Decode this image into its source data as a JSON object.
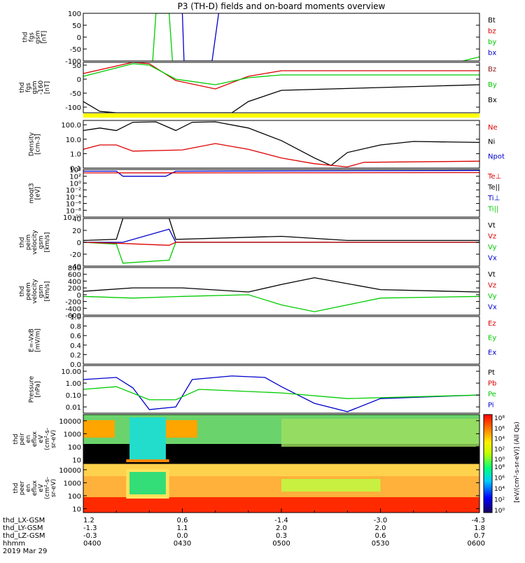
{
  "title": "P3 (TH-D) fields and on-board moments overview",
  "colors": {
    "black": "#000000",
    "red": "#dd0000",
    "green": "#00cc00",
    "blue": "#0000cc",
    "yellow": "#ffff00",
    "brown": "#8b1a1a"
  },
  "xaxis": {
    "start": "0400",
    "end": "0600",
    "major_ticks": [
      "0400",
      "0430",
      "0500",
      "0530",
      "0600"
    ],
    "rows": [
      {
        "label": "thd_LX-GSM",
        "values": [
          "1.2",
          "0.6",
          "-1.4",
          "-3.0",
          "-4.3"
        ]
      },
      {
        "label": "thd_LY-GSM",
        "values": [
          "-1.3",
          "1.1",
          "2.0",
          "2.0",
          "1.8"
        ]
      },
      {
        "label": "thd_LZ-GSM",
        "values": [
          "-0.3",
          "0.0",
          "0.3",
          "0.6",
          "0.7"
        ]
      },
      {
        "label": "hhmm",
        "values": [
          "0400",
          "0430",
          "0500",
          "0530",
          "0600"
        ]
      }
    ],
    "date": "2019 Mar 29"
  },
  "chart_data": [
    {
      "id": "fgs",
      "type": "line",
      "ylabel_lines": [
        "thd",
        "fgs",
        "gsm",
        "[nT]"
      ],
      "yticks": [
        "100",
        "50",
        "0",
        "-50",
        "-100"
      ],
      "ylim": [
        -100,
        100
      ],
      "legend": [
        "Bt",
        "bz",
        "by",
        "bx"
      ],
      "legend_colors": [
        "black",
        "red",
        "green",
        "blue"
      ],
      "series": [
        {
          "name": "by",
          "color": "green",
          "x": [
            "0421",
            "0422",
            "0426",
            "0427"
          ],
          "y": [
            -100,
            100,
            100,
            -100
          ]
        },
        {
          "name": "bx",
          "color": "blue",
          "x": [
            "0430",
            "0430.5",
            "0439",
            "0441"
          ],
          "y": [
            100,
            -100,
            -100,
            100
          ]
        },
        {
          "name": "by",
          "color": "green",
          "x": [
            "0555",
            "0600"
          ],
          "y": [
            -100,
            -83
          ]
        }
      ]
    },
    {
      "id": "fgs160",
      "type": "line",
      "ylabel_lines": [
        "thd",
        "fgs",
        "gsm",
        "-160",
        "[nT]"
      ],
      "yticks": [
        "50",
        "0",
        "-50",
        "-100"
      ],
      "ylim": [
        -120,
        60
      ],
      "legend": [
        "Bz",
        "By",
        "Bx"
      ],
      "legend_colors": [
        "brown",
        "green",
        "black"
      ],
      "series": [
        {
          "name": "Bz",
          "color": "red",
          "x": [
            "0400",
            "0415",
            "0420",
            "0428",
            "0440",
            "0450",
            "0500",
            "0530",
            "0600"
          ],
          "y": [
            20,
            60,
            55,
            -5,
            -35,
            10,
            30,
            30,
            30
          ]
        },
        {
          "name": "By",
          "color": "green",
          "x": [
            "0400",
            "0415",
            "0420",
            "0428",
            "0440",
            "0450",
            "0500",
            "0530",
            "0600"
          ],
          "y": [
            10,
            55,
            50,
            0,
            -20,
            5,
            15,
            15,
            15
          ]
        },
        {
          "name": "Bx",
          "color": "black",
          "x": [
            "0400",
            "0405",
            "0410",
            "0445",
            "0450",
            "0500",
            "0530",
            "0600"
          ],
          "y": [
            -80,
            -115,
            -120,
            -120,
            -80,
            -40,
            -30,
            -20
          ]
        }
      ]
    },
    {
      "id": "density",
      "type": "line",
      "scale": "log",
      "ylabel_lines": [
        "Density",
        "[cm-3]"
      ],
      "yticks": [
        "100.0",
        "10.0",
        "1.0",
        "0.1"
      ],
      "ylim": [
        0.1,
        200
      ],
      "legend": [
        "Ne",
        "Ni",
        "Npot"
      ],
      "legend_colors": [
        "red",
        "black",
        "blue"
      ],
      "series": [
        {
          "name": "Ni",
          "color": "black",
          "x": [
            "0400",
            "0405",
            "0410",
            "0415",
            "0422",
            "0428",
            "0433",
            "0440",
            "0450",
            "0500",
            "0510",
            "0515",
            "0520",
            "0530",
            "0540",
            "0600"
          ],
          "y": [
            40,
            60,
            40,
            150,
            160,
            40,
            150,
            160,
            60,
            8,
            0.5,
            0.15,
            1.2,
            4,
            7,
            6
          ]
        },
        {
          "name": "Ne",
          "color": "red",
          "x": [
            "0400",
            "0405",
            "0410",
            "0415",
            "0430",
            "0440",
            "0450",
            "0500",
            "0510",
            "0520",
            "0525",
            "0600"
          ],
          "y": [
            2,
            4,
            4,
            1.5,
            1.8,
            5,
            2,
            0.5,
            0.2,
            0.12,
            0.25,
            0.3
          ]
        }
      ]
    },
    {
      "id": "moqt3",
      "type": "line",
      "scale": "log",
      "ylabel_lines": [
        "moqt3",
        "[eV]"
      ],
      "yticks": [
        "10⁴",
        "10²",
        "10⁰",
        "10⁻²",
        "10⁻⁴",
        "10⁻⁶",
        "10⁻⁸",
        "10⁻¹⁰"
      ],
      "ylim": [
        1e-10,
        10000.0
      ],
      "legend": [
        "Te⊥",
        "Te||",
        "Ti⊥",
        "Ti||"
      ],
      "legend_colors": [
        "red",
        "black",
        "blue",
        "green"
      ],
      "series": [
        {
          "name": "Ti",
          "color": "blue",
          "x": [
            "0400",
            "0410",
            "0412",
            "0425",
            "0428",
            "0600"
          ],
          "y": [
            3000,
            3000,
            100,
            100,
            3000,
            5000
          ]
        },
        {
          "name": "Te",
          "color": "red",
          "x": [
            "0400",
            "0600"
          ],
          "y": [
            1000,
            1200
          ]
        }
      ]
    },
    {
      "id": "peim",
      "type": "line",
      "ylabel_lines": [
        "thd",
        "peim",
        "velocity",
        "gsm",
        "[km/s]"
      ],
      "yticks": [
        "40",
        "20",
        "0",
        "-20",
        "-40"
      ],
      "ylim": [
        -40,
        40
      ],
      "legend": [
        "Vt",
        "Vz",
        "Vy",
        "Vx"
      ],
      "legend_colors": [
        "black",
        "red",
        "green",
        "blue"
      ],
      "series": [
        {
          "name": "Vt",
          "color": "black",
          "x": [
            "0400",
            "0410",
            "0412",
            "0426",
            "0428",
            "0500",
            "0520",
            "0600"
          ],
          "y": [
            3,
            5,
            40,
            40,
            5,
            10,
            3,
            3
          ]
        },
        {
          "name": "Vy",
          "color": "green",
          "x": [
            "0400",
            "0410",
            "0412",
            "0426",
            "0428",
            "0600"
          ],
          "y": [
            0,
            -3,
            -35,
            -30,
            0,
            0
          ]
        },
        {
          "name": "Vx",
          "color": "blue",
          "x": [
            "0400",
            "0412",
            "0426",
            "0428",
            "0600"
          ],
          "y": [
            0,
            0,
            22,
            0,
            0
          ]
        },
        {
          "name": "Vz",
          "color": "red",
          "x": [
            "0400",
            "0412",
            "0426",
            "0428",
            "0600"
          ],
          "y": [
            0,
            -2,
            -5,
            0,
            0
          ]
        }
      ]
    },
    {
      "id": "peem",
      "type": "line",
      "ylabel_lines": [
        "thd",
        "peem",
        "velocity",
        "gsm",
        "[km/s]"
      ],
      "yticks": [
        "800",
        "600",
        "400",
        "200",
        "0",
        "-200",
        "-400",
        "-600"
      ],
      "ylim": [
        -600,
        800
      ],
      "legend": [
        "Vt",
        "Vz",
        "Vy",
        "Vx"
      ],
      "legend_colors": [
        "black",
        "red",
        "green",
        "blue"
      ],
      "series": [
        {
          "name": "Vt",
          "color": "black",
          "x": [
            "0400",
            "0415",
            "0430",
            "0450",
            "0500",
            "0510",
            "0530",
            "0600"
          ],
          "y": [
            100,
            200,
            200,
            80,
            300,
            500,
            150,
            80
          ]
        },
        {
          "name": "Vy",
          "color": "green",
          "x": [
            "0400",
            "0415",
            "0430",
            "0450",
            "0500",
            "0510",
            "0530",
            "0600"
          ],
          "y": [
            -50,
            -100,
            -50,
            0,
            -300,
            -500,
            -100,
            -50
          ]
        }
      ]
    },
    {
      "id": "efield",
      "type": "line",
      "ylabel_lines": [
        "E=-VxB",
        "[mV/m]"
      ],
      "yticks": [
        "1.0",
        "0.8",
        "0.6",
        "0.4",
        "0.2",
        "0.0"
      ],
      "ylim": [
        0,
        1
      ],
      "legend": [
        "Ez",
        "Ey",
        "Ex"
      ],
      "legend_colors": [
        "red",
        "green",
        "blue"
      ],
      "series": []
    },
    {
      "id": "pressure",
      "type": "line",
      "scale": "log",
      "ylabel_lines": [
        "Pressure",
        "[nPa]"
      ],
      "yticks": [
        "10.00",
        "1.00",
        "0.10",
        "0.01"
      ],
      "ylim": [
        0.003,
        30
      ],
      "legend": [
        "Pt",
        "Pb",
        "Pe",
        "Pi"
      ],
      "legend_colors": [
        "black",
        "red",
        "green",
        "blue"
      ],
      "series": [
        {
          "name": "Pi",
          "color": "blue",
          "x": [
            "0400",
            "0410",
            "0415",
            "0420",
            "0428",
            "0433",
            "0445",
            "0455",
            "0500",
            "0510",
            "0520",
            "0530",
            "0600"
          ],
          "y": [
            2,
            3,
            0.4,
            0.006,
            0.01,
            2,
            4,
            3,
            0.5,
            0.02,
            0.004,
            0.05,
            0.1
          ]
        },
        {
          "name": "Pe",
          "color": "green",
          "x": [
            "0400",
            "0410",
            "0420",
            "0428",
            "0435",
            "0500",
            "0520",
            "0600"
          ],
          "y": [
            0.3,
            0.5,
            0.04,
            0.04,
            0.3,
            0.15,
            0.05,
            0.1
          ]
        }
      ]
    },
    {
      "id": "peir",
      "type": "heatmap",
      "ylabel_lines": [
        "thd",
        "peir",
        "en",
        "eflux",
        "eV",
        "(cm²-s-",
        "sr-eV)"
      ],
      "yticks": [
        "10000",
        "1000",
        "100",
        "10"
      ],
      "ylim": [
        5,
        30000
      ]
    },
    {
      "id": "peer",
      "type": "heatmap",
      "ylabel_lines": [
        "thd",
        "peer",
        "en",
        "eflux",
        "eV",
        "(cm²-s-",
        "sr-eV)"
      ],
      "yticks": [
        "10000",
        "1000",
        "100",
        "10"
      ],
      "ylim": [
        5,
        30000
      ]
    }
  ],
  "colorbar": {
    "label": "[eV/(cm²-s-sr-eV)] (All Qs)",
    "ticks_top": [
      "10⁸",
      "10⁶",
      "10⁴",
      "10²",
      "10⁰"
    ],
    "ticks_bottom": [
      "10⁸",
      "10⁶",
      "10⁴",
      "10²",
      "10⁰"
    ]
  }
}
